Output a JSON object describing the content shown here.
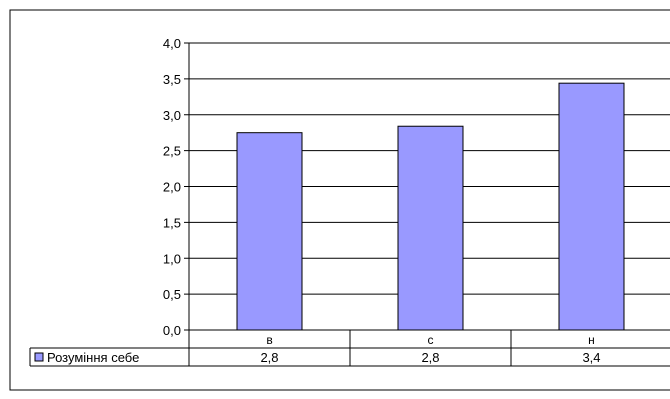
{
  "chart_data": {
    "type": "bar",
    "categories": [
      "в",
      "с",
      "н"
    ],
    "series": [
      {
        "name": "Розуміння себе",
        "values": [
          2.75,
          2.84,
          3.44
        ]
      }
    ],
    "ylim": [
      0,
      4
    ],
    "y_ticks": [
      "0,0",
      "0,5",
      "1,0",
      "1,5",
      "2,0",
      "2,5",
      "3,0",
      "3,5",
      "4,0"
    ],
    "data_table": {
      "row_label": "Розуміння себе",
      "cells": [
        "2,8",
        "2,8",
        "3,4"
      ]
    },
    "grid": true,
    "legend": "bottom-left, in data table",
    "colors": {
      "bar_fill": "#9999ff",
      "bar_stroke": "#000000",
      "gridline": "#000000"
    }
  }
}
